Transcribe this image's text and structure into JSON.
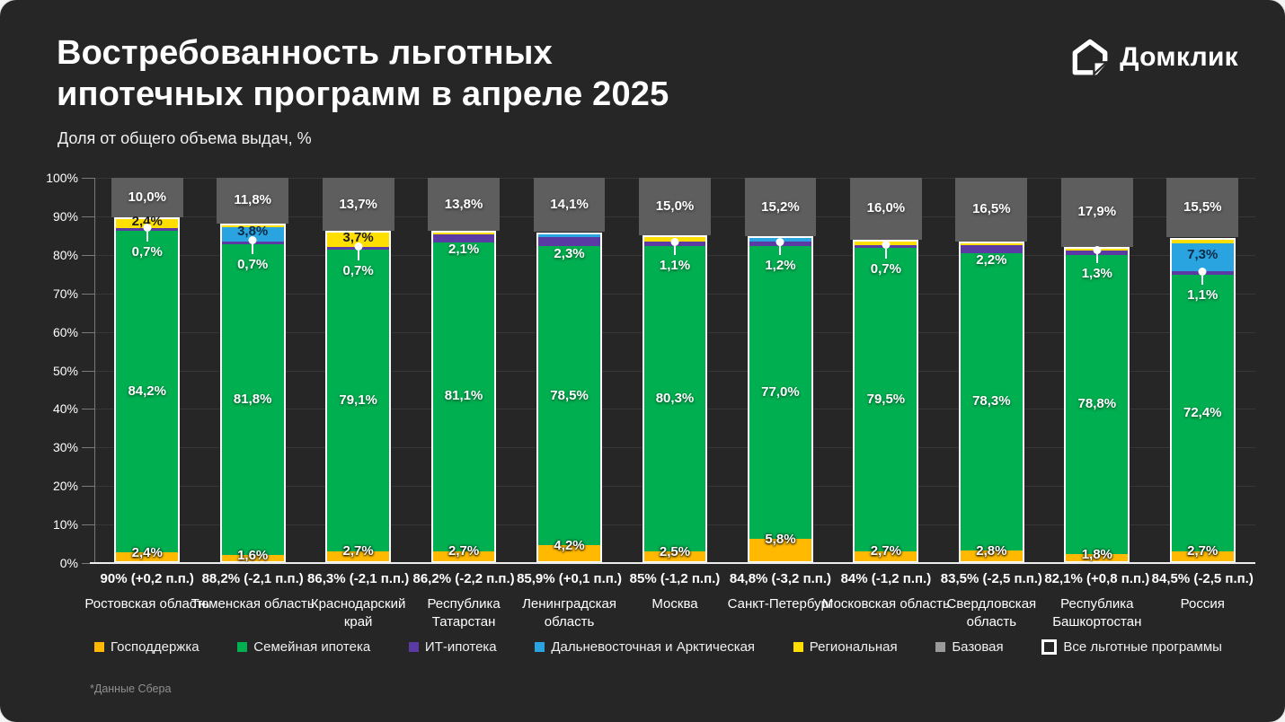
{
  "header": {
    "title_line1": "Востребованность льготных",
    "title_line2": "ипотечных программ в апреле 2025",
    "subtitle": "Доля от общего объема выдач, %",
    "brand": "Домклик"
  },
  "footnote": "*Данные Сбера",
  "chart_data": {
    "type": "bar",
    "stacked": true,
    "ylim": [
      0,
      100
    ],
    "grid": true,
    "y_ticks": [
      "0%",
      "10%",
      "20%",
      "30%",
      "40%",
      "50%",
      "60%",
      "70%",
      "80%",
      "90%",
      "100%"
    ],
    "series_order": [
      "gosp",
      "family",
      "it",
      "fareast",
      "regional"
    ],
    "colors": {
      "gosp": "#FFB900",
      "family": "#00B050",
      "it": "#5B3BA3",
      "fareast": "#29A4E0",
      "regional": "#FFDF00",
      "base": "#5E5E5E",
      "base_legend": "#9A9A9A",
      "outline": "#FFFFFF",
      "background": "#262626"
    },
    "legend": [
      {
        "key": "gosp",
        "label": "Господдержка"
      },
      {
        "key": "family",
        "label": "Семейная ипотека"
      },
      {
        "key": "it",
        "label": "ИТ-ипотека"
      },
      {
        "key": "fareast",
        "label": "Дальневосточная и Арктическая"
      },
      {
        "key": "regional",
        "label": "Региональная"
      },
      {
        "key": "base",
        "label": "Базовая"
      },
      {
        "key": "all",
        "label": "Все льготные программы"
      }
    ],
    "bars": [
      {
        "region": [
          "Ростовская область"
        ],
        "total_label": "90% (+0,2 п.п.)",
        "segments": {
          "gosp": 2.4,
          "family": 84.2,
          "it": 0.7,
          "fareast": 0,
          "regional": 2.4,
          "base": 10.0
        },
        "labels": {
          "gosp": "2,4%",
          "family": "84,2%",
          "it": "0,7%",
          "regional": "2,4%",
          "base": "10,0%"
        },
        "it_label_mode": "callout"
      },
      {
        "region": [
          "Тюменская область"
        ],
        "total_label": "88,2% (-2,1 п.п.)",
        "segments": {
          "gosp": 1.6,
          "family": 81.8,
          "it": 0.7,
          "fareast": 3.8,
          "regional": 0.3,
          "base": 11.8
        },
        "labels": {
          "gosp": "1,6%",
          "family": "81,8%",
          "it": "0,7%",
          "fareast": "3,8%",
          "base": "11,8%"
        },
        "it_label_mode": "callout"
      },
      {
        "region": [
          "Краснодарский",
          "край"
        ],
        "total_label": "86,3% (-2,1 п.п.)",
        "segments": {
          "gosp": 2.7,
          "family": 79.1,
          "it": 0.7,
          "fareast": 0,
          "regional": 3.7,
          "base": 13.7
        },
        "labels": {
          "gosp": "2,7%",
          "family": "79,1%",
          "it": "0,7%",
          "regional": "3,7%",
          "base": "13,7%"
        },
        "it_label_mode": "callout"
      },
      {
        "region": [
          "Республика",
          "Татарстан"
        ],
        "total_label": "86,2% (-2,2 п.п.)",
        "segments": {
          "gosp": 2.7,
          "family": 81.1,
          "it": 2.1,
          "fareast": 0,
          "regional": 0.3,
          "base": 13.8
        },
        "labels": {
          "gosp": "2,7%",
          "family": "81,1%",
          "it": "2,1%",
          "base": "13,8%"
        },
        "it_label_mode": "inline"
      },
      {
        "region": [
          "Ленинградская",
          "область"
        ],
        "total_label": "85,9% (+0,1 п.п.)",
        "segments": {
          "gosp": 4.2,
          "family": 78.5,
          "it": 2.3,
          "fareast": 0.9,
          "regional": 0,
          "base": 14.1
        },
        "labels": {
          "gosp": "4,2%",
          "family": "78,5%",
          "it": "2,3%",
          "base": "14,1%"
        },
        "it_label_mode": "inline"
      },
      {
        "region": [
          "Москва"
        ],
        "total_label": "85% (-1,2 п.п.)",
        "segments": {
          "gosp": 2.5,
          "family": 80.3,
          "it": 1.1,
          "fareast": 0,
          "regional": 1.1,
          "base": 15.0
        },
        "labels": {
          "gosp": "2,5%",
          "family": "80,3%",
          "it": "1,1%",
          "base": "15,0%"
        },
        "it_label_mode": "callout"
      },
      {
        "region": [
          "Санкт-Петербург"
        ],
        "total_label": "84,8% (-3,2 п.п.)",
        "segments": {
          "gosp": 5.8,
          "family": 77.0,
          "it": 1.2,
          "fareast": 0.8,
          "regional": 0,
          "base": 15.2
        },
        "labels": {
          "gosp": "5,8%",
          "family": "77,0%",
          "it": "1,2%",
          "base": "15,2%"
        },
        "it_label_mode": "callout"
      },
      {
        "region": [
          "Московская область"
        ],
        "total_label": "84% (-1,2 п.п.)",
        "segments": {
          "gosp": 2.7,
          "family": 79.5,
          "it": 0.7,
          "fareast": 0,
          "regional": 1.1,
          "base": 16.0
        },
        "labels": {
          "gosp": "2,7%",
          "family": "79,5%",
          "it": "0,7%",
          "base": "16,0%"
        },
        "it_label_mode": "callout"
      },
      {
        "region": [
          "Свердловская",
          "область"
        ],
        "total_label": "83,5% (-2,5 п.п.)",
        "segments": {
          "gosp": 2.8,
          "family": 78.3,
          "it": 2.2,
          "fareast": 0,
          "regional": 0.2,
          "base": 16.5
        },
        "labels": {
          "gosp": "2,8%",
          "family": "78,3%",
          "it": "2,2%",
          "base": "16,5%"
        },
        "it_label_mode": "inline"
      },
      {
        "region": [
          "Республика",
          "Башкортостан"
        ],
        "total_label": "82,1% (+0,8 п.п.)",
        "segments": {
          "gosp": 1.8,
          "family": 78.8,
          "it": 1.3,
          "fareast": 0,
          "regional": 0.2,
          "base": 17.9
        },
        "labels": {
          "gosp": "1,8%",
          "family": "78,8%",
          "it": "1,3%",
          "base": "17,9%"
        },
        "it_label_mode": "callout"
      },
      {
        "region": [
          "Россия"
        ],
        "total_label": "84,5% (-2,5 п.п.)",
        "segments": {
          "gosp": 2.7,
          "family": 72.4,
          "it": 1.1,
          "fareast": 7.3,
          "regional": 1.0,
          "base": 15.5
        },
        "labels": {
          "gosp": "2,7%",
          "family": "72,4%",
          "it": "1,1%",
          "fareast": "7,3%",
          "base": "15,5%"
        },
        "it_label_mode": "callout"
      }
    ]
  }
}
